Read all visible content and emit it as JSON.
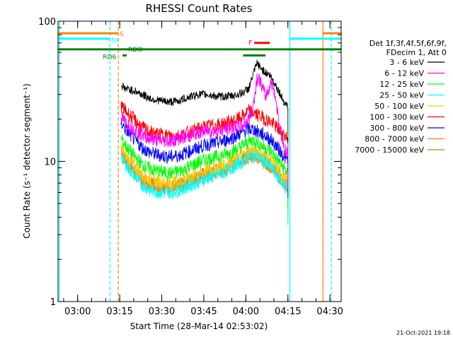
{
  "chart_data": {
    "type": "line",
    "title": "RHESSI Count Rates",
    "xlabel": "Start Time (28-Mar-14 02:53:02)",
    "ylabel": "Count Rate (s⁻¹ detector segment⁻¹)",
    "yscale": "log",
    "ylim": [
      1,
      100
    ],
    "xlim_minutes_from_start": [
      0,
      101
    ],
    "x_ticks": [
      {
        "label": "03:00",
        "minute": 7
      },
      {
        "label": "03:15",
        "minute": 22
      },
      {
        "label": "03:30",
        "minute": 37
      },
      {
        "label": "03:45",
        "minute": 52
      },
      {
        "label": "04:00",
        "minute": 67
      },
      {
        "label": "04:15",
        "minute": 82
      },
      {
        "label": "04:30",
        "minute": 97
      }
    ],
    "y_ticks": [
      {
        "label": "1",
        "value": 1
      },
      {
        "label": "10",
        "value": 10
      },
      {
        "label": "100",
        "value": 100
      }
    ],
    "legend": {
      "position": "right",
      "header": [
        "Det 1f,3f,4f,5f,6f,9f,",
        "FDecim 1, Att 0"
      ],
      "entries": [
        {
          "label": "3 - 6 keV",
          "color": "#000000"
        },
        {
          "label": "6 - 12 keV",
          "color": "#ff00ff"
        },
        {
          "label": "12 - 25 keV",
          "color": "#00ff00"
        },
        {
          "label": "25 - 50 keV",
          "color": "#00ffff"
        },
        {
          "label": "50 - 100 keV",
          "color": "#ffc800"
        },
        {
          "label": "100 - 300 keV",
          "color": "#ff0000"
        },
        {
          "label": "300 - 800 keV",
          "color": "#0000ff"
        },
        {
          "label": "800 - 7000 keV",
          "color": "#ff8000"
        },
        {
          "label": "7000 - 15000 keV",
          "color": "#b8860b"
        }
      ]
    },
    "series": [
      {
        "name": "3 - 6 keV",
        "color": "#000000",
        "x": [
          22.5,
          24,
          27,
          30,
          33,
          37,
          40,
          43,
          46,
          50,
          53,
          57,
          60,
          63,
          66,
          68,
          69,
          70,
          71,
          72,
          73,
          74,
          75,
          76,
          77,
          78,
          79,
          80,
          81,
          82
        ],
        "y": [
          35,
          33,
          32,
          30,
          28,
          27,
          26.5,
          27,
          28.5,
          30,
          30,
          29,
          29,
          29.5,
          31,
          33,
          38,
          44,
          50,
          47,
          45,
          43,
          42,
          40,
          37,
          34,
          31,
          28,
          26,
          25
        ]
      },
      {
        "name": "6 - 12 keV",
        "color": "#ff00ff",
        "x": [
          22.5,
          24,
          27,
          30,
          33,
          37,
          40,
          43,
          46,
          50,
          53,
          57,
          60,
          63,
          66,
          67,
          68,
          69,
          70,
          71,
          72,
          73,
          74,
          75,
          76,
          77,
          78,
          79,
          80,
          81,
          82
        ],
        "y": [
          21,
          19,
          17,
          15.5,
          14.5,
          14,
          14,
          14.5,
          15,
          16,
          16.5,
          16.5,
          17,
          17.5,
          18,
          19,
          20,
          22,
          28,
          40,
          38,
          33,
          29,
          32,
          37,
          33,
          25,
          18,
          14,
          12,
          11.5
        ]
      },
      {
        "name": "12 - 25 keV",
        "color": "#00ff00",
        "x": [
          22.5,
          24,
          27,
          30,
          33,
          37,
          40,
          43,
          46,
          50,
          53,
          57,
          60,
          63,
          66,
          68,
          70,
          72,
          74,
          76,
          78,
          80,
          82
        ],
        "y": [
          14.5,
          13,
          11,
          9.5,
          8.8,
          8.4,
          8.2,
          8.5,
          9,
          9.8,
          10.4,
          10.8,
          11.3,
          12,
          13,
          13.8,
          14.2,
          13.2,
          12.5,
          11.8,
          10.5,
          9.2,
          8.3
        ]
      },
      {
        "name": "25 - 50 keV",
        "color": "#00ffff",
        "x": [
          22.5,
          24,
          27,
          30,
          33,
          37,
          40,
          43,
          46,
          50,
          53,
          57,
          60,
          63,
          66,
          68,
          70,
          72,
          74,
          76,
          78,
          80,
          82
        ],
        "y": [
          11,
          9.5,
          8,
          6.8,
          6.2,
          6,
          6,
          6.2,
          6.6,
          7.1,
          7.6,
          8,
          8.5,
          9.2,
          10,
          10.8,
          11,
          10.5,
          9.8,
          9,
          8,
          7,
          6.3
        ]
      },
      {
        "name": "50 - 100 keV",
        "color": "#ffc800",
        "x": [
          22.5,
          24,
          27,
          30,
          33,
          37,
          40,
          43,
          46,
          50,
          53,
          57,
          60,
          63,
          66,
          68,
          70,
          72,
          74,
          76,
          78,
          80,
          82
        ],
        "y": [
          12.5,
          11,
          9.4,
          8,
          7.4,
          7.1,
          7,
          7.2,
          7.6,
          8.2,
          8.7,
          9.1,
          9.6,
          10.3,
          11.2,
          11.8,
          12,
          11.4,
          10.8,
          10,
          9,
          7.9,
          7.1
        ]
      },
      {
        "name": "100 - 300 keV",
        "color": "#ff0000",
        "x": [
          22.5,
          24,
          27,
          30,
          33,
          37,
          40,
          43,
          46,
          50,
          53,
          57,
          60,
          63,
          66,
          67,
          68,
          69,
          70,
          71,
          72,
          74,
          76,
          78,
          80,
          82
        ],
        "y": [
          25,
          23,
          20,
          17.5,
          16,
          15.5,
          15.2,
          15.3,
          16,
          17,
          17.8,
          18.2,
          18.8,
          19.5,
          21,
          22,
          23,
          22.5,
          22,
          21.5,
          21,
          20,
          19,
          17.5,
          16,
          14.5
        ]
      },
      {
        "name": "300 - 800 keV",
        "color": "#0000ff",
        "x": [
          22.5,
          24,
          27,
          30,
          33,
          37,
          40,
          43,
          46,
          50,
          53,
          57,
          60,
          63,
          66,
          68,
          70,
          72,
          74,
          76,
          78,
          80,
          82
        ],
        "y": [
          19,
          17,
          14.5,
          12.5,
          11.5,
          11,
          10.8,
          11,
          11.6,
          12.5,
          13.2,
          13.6,
          14.2,
          15,
          16.2,
          17,
          16.8,
          16,
          15.2,
          14.2,
          12.8,
          11.3,
          10
        ]
      },
      {
        "name": "800 - 7000 keV",
        "color": "#ff8000",
        "x": [
          22.5,
          24,
          27,
          30,
          33,
          37,
          40,
          43,
          46,
          50,
          53,
          57,
          60,
          63,
          66,
          68,
          70,
          72,
          74,
          76,
          78,
          80,
          82
        ],
        "y": [
          11.5,
          10,
          8.4,
          7.2,
          6.7,
          6.4,
          6.4,
          6.6,
          7,
          7.5,
          8,
          8.4,
          8.8,
          9.4,
          10.2,
          10.7,
          10.8,
          10.3,
          9.7,
          9,
          8.1,
          7.2,
          6.5
        ]
      },
      {
        "name": "7000 - 15000 keV",
        "color": "#b8860b",
        "x": [
          22.5,
          24,
          27,
          30,
          33,
          37,
          40,
          43,
          46,
          50,
          53,
          57,
          60,
          63,
          66,
          68,
          70,
          72,
          74,
          76,
          78,
          80,
          82
        ],
        "y": [
          12,
          10.5,
          8.8,
          7.5,
          7,
          6.7,
          6.6,
          6.8,
          7.3,
          7.8,
          8.3,
          8.7,
          9.1,
          9.8,
          10.6,
          11.2,
          11.3,
          10.7,
          10.1,
          9.4,
          8.5,
          7.5,
          6.8
        ]
      }
    ],
    "vertical_markers": [
      {
        "minute": 0.5,
        "color": "#00ffff",
        "style": "solid"
      },
      {
        "minute": 18.5,
        "color": "#00ffff",
        "style": "dashed"
      },
      {
        "minute": 21.5,
        "color": "#ff8000",
        "style": "dashed"
      },
      {
        "minute": 82.7,
        "color": "#00ffff",
        "style": "solid"
      },
      {
        "minute": 94.5,
        "color": "#ff8000",
        "style": "solid"
      },
      {
        "minute": 97.5,
        "color": "#00ffff",
        "style": "dashed"
      }
    ],
    "flag_bars": [
      {
        "label": "S",
        "color": "#ff8000",
        "y": 82,
        "segments": [
          [
            0,
            21.5
          ],
          [
            94.5,
            101
          ]
        ]
      },
      {
        "label": "NI",
        "color": "#00ffff",
        "y": 75,
        "segments": [
          [
            0,
            18.5
          ],
          [
            82.7,
            101
          ]
        ]
      },
      {
        "label": "F",
        "color": "#ff0000",
        "y": 70,
        "segments": [
          [
            70,
            75.5
          ]
        ]
      },
      {
        "label": "RDO",
        "color": "#008000",
        "y": 63,
        "segments": [
          [
            0,
            101
          ]
        ]
      },
      {
        "label": "RD6",
        "color": "#008000",
        "y": 57,
        "segments": [
          [
            23,
            24.5
          ],
          [
            66,
            74
          ]
        ]
      }
    ],
    "footer_timestamp": "21-Oct-2021 19:18"
  }
}
